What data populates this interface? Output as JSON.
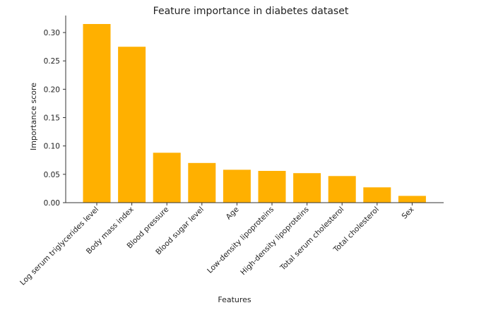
{
  "chart_data": {
    "type": "bar",
    "title": "Feature importance in diabetes dataset",
    "xlabel": "Features",
    "ylabel": "Importance score",
    "categories": [
      "Log serum triglycerides level",
      "Body mass index",
      "Blood pressure",
      "Blood sugar level",
      "Age",
      "Low-density lipoproteins",
      "High-density lipoproteins",
      "Total serum cholesterol",
      "Total cholesterol",
      "Sex"
    ],
    "values": [
      0.315,
      0.275,
      0.088,
      0.07,
      0.058,
      0.056,
      0.052,
      0.047,
      0.027,
      0.012
    ],
    "ylim": [
      0,
      0.33
    ],
    "yticks": [
      "0.00",
      "0.05",
      "0.10",
      "0.15",
      "0.20",
      "0.25",
      "0.30"
    ],
    "grid": false,
    "bar_color": "#FFB000"
  }
}
